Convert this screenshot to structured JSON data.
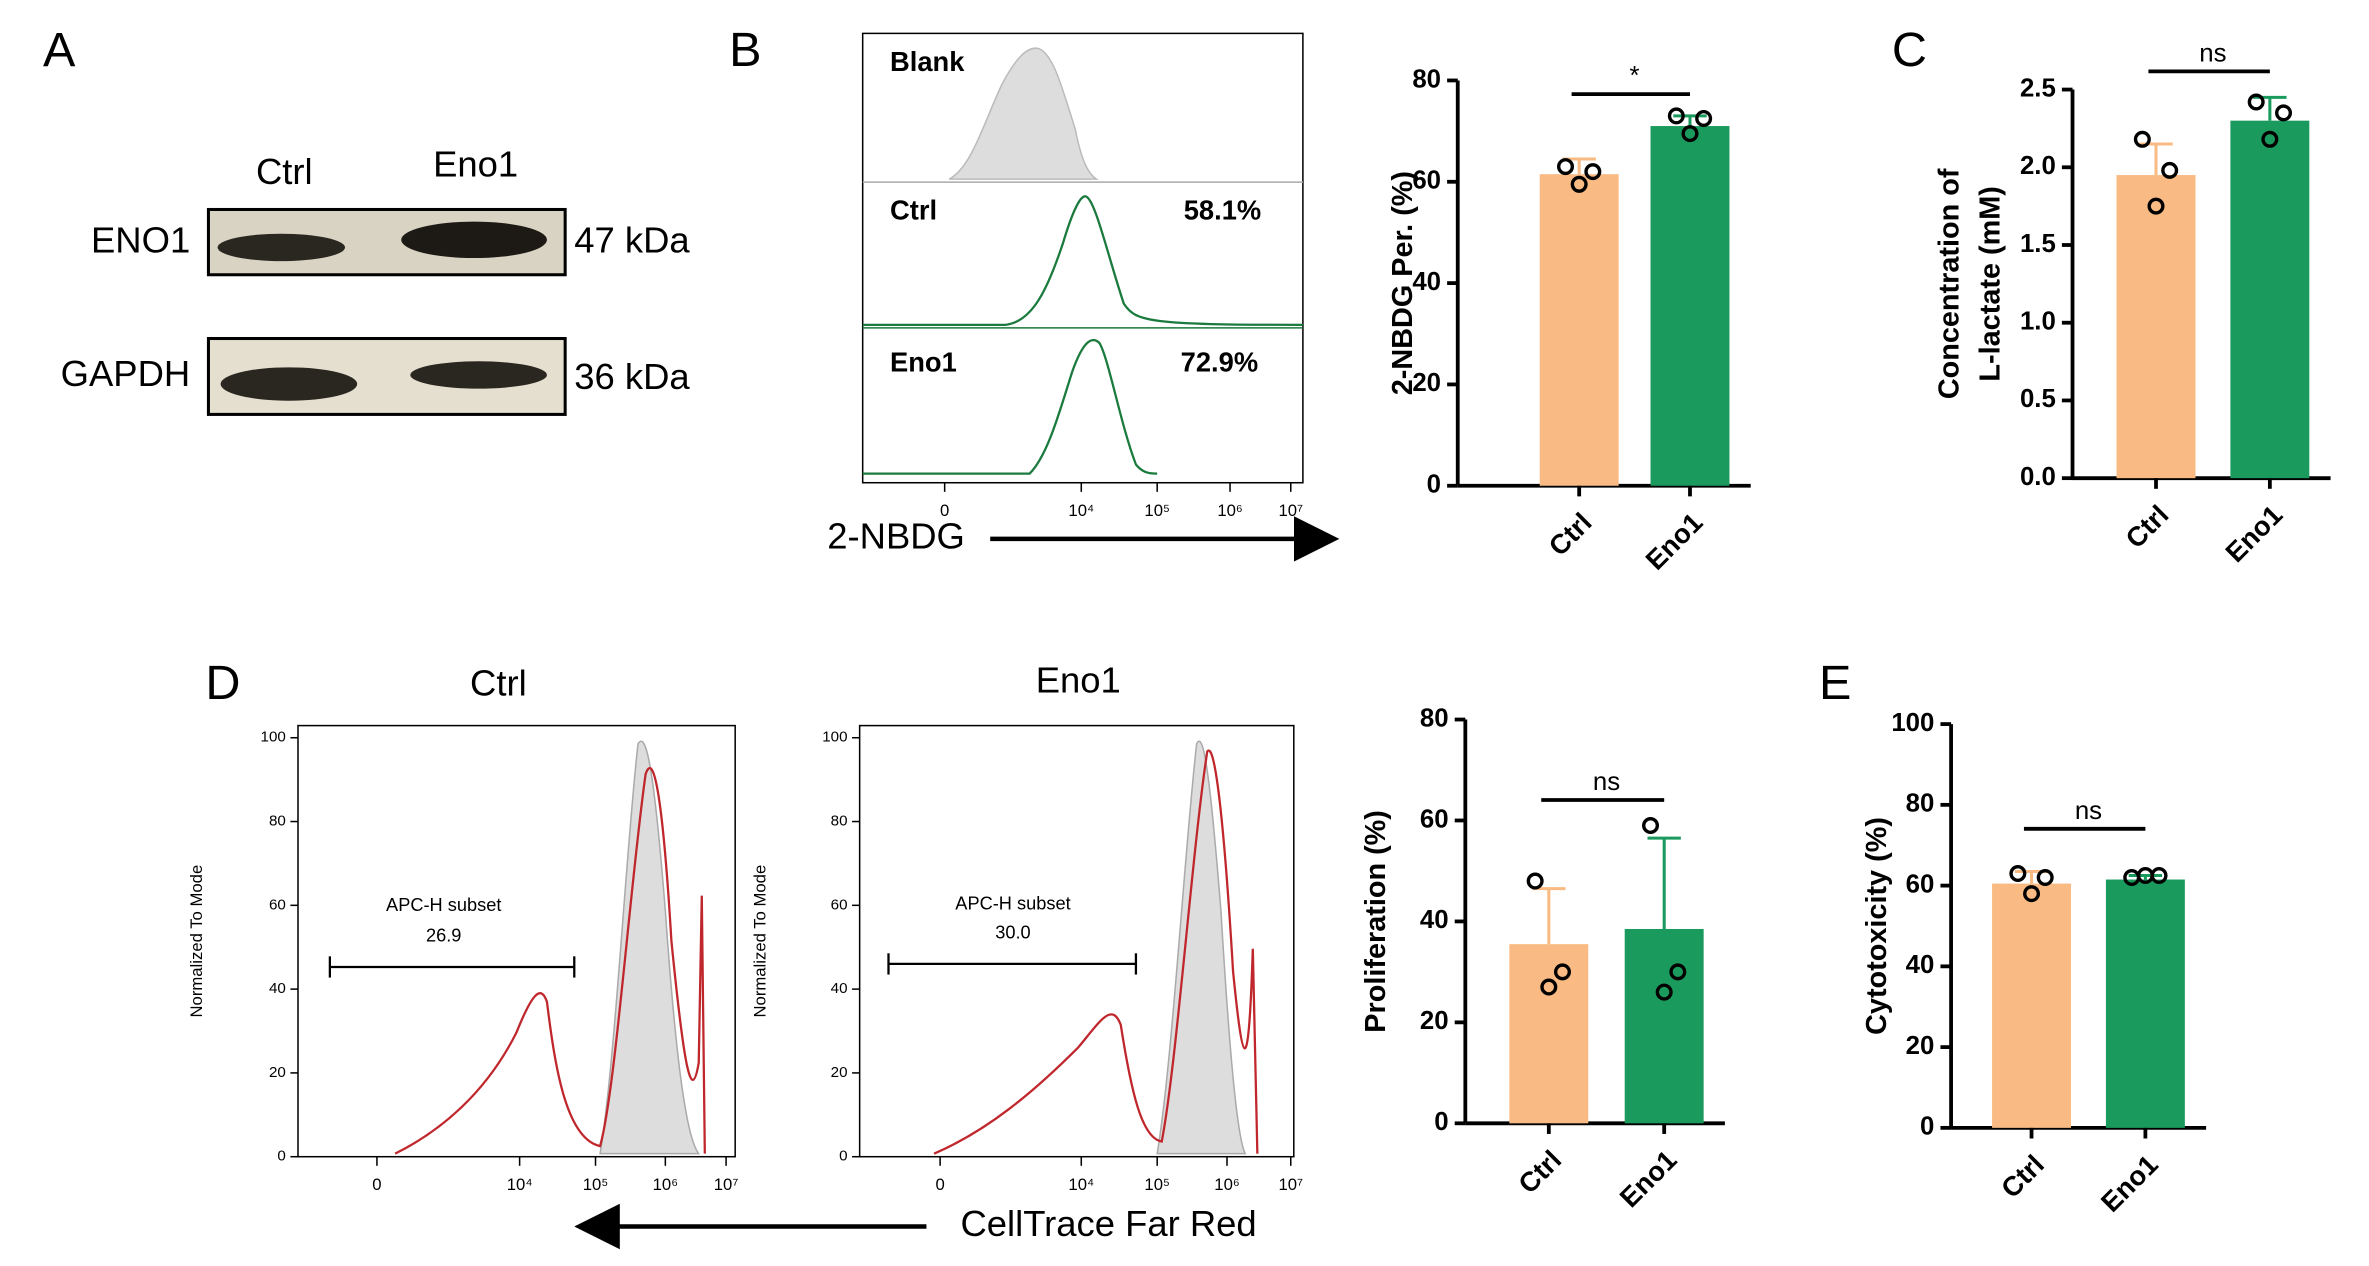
{
  "panel_labels": [
    "A",
    "B",
    "C",
    "D",
    "E"
  ],
  "blot": {
    "lanes": [
      "Ctrl",
      "Eno1"
    ],
    "bands": [
      {
        "name": "ENO1",
        "size": "47 kDa"
      },
      {
        "name": "GAPDH",
        "size": "36 kDa"
      }
    ]
  },
  "flow_b": {
    "samples": [
      {
        "name": "Blank"
      },
      {
        "name": "Ctrl",
        "percent": "58.1%"
      },
      {
        "name": "Eno1",
        "percent": "72.9%"
      }
    ],
    "xticks": [
      "0",
      "10⁴",
      "10⁵",
      "10⁶",
      "10⁷"
    ],
    "xlabel": "2-NBDG"
  },
  "flow_d": {
    "plots": [
      {
        "title": "Ctrl",
        "gate": "APC-H subset",
        "gate_value": "26.9"
      },
      {
        "title": "Eno1",
        "gate": "APC-H subset",
        "gate_value": "30.0"
      }
    ],
    "ylabel": "Normalized To Mode",
    "ylim": [
      0,
      100
    ],
    "yticks": [
      0,
      20,
      40,
      60,
      80,
      100
    ],
    "xticks": [
      "0",
      "10⁴",
      "10⁵",
      "10⁶",
      "10⁷"
    ],
    "xlabel": "CellTrace Far Red"
  },
  "chart_data": [
    {
      "type": "bar",
      "ylabel": "2-NBDG Per. (%)",
      "categories": [
        "Ctrl",
        "Eno1"
      ],
      "colors": [
        "#f9bb83",
        "#1b9a5d"
      ],
      "values": [
        61.5,
        71
      ],
      "error": [
        3,
        2
      ],
      "points": [
        [
          63,
          62,
          59.5
        ],
        [
          73,
          72.5,
          69.5
        ]
      ],
      "ylim": [
        0,
        80
      ],
      "yticks": [
        0,
        20,
        40,
        60,
        80
      ],
      "significance": "*"
    },
    {
      "type": "bar",
      "ylabel": [
        "Concentration of",
        "L-lactate (mM)"
      ],
      "categories": [
        "Ctrl",
        "Eno1"
      ],
      "colors": [
        "#f9bb83",
        "#1b9a5d"
      ],
      "values": [
        1.95,
        2.3
      ],
      "error": [
        0.2,
        0.15
      ],
      "points": [
        [
          2.18,
          1.98,
          1.75
        ],
        [
          2.42,
          2.35,
          2.18
        ]
      ],
      "ylim": [
        0,
        2.5
      ],
      "yticks": [
        {
          "value": 0,
          "label": "0.0"
        },
        0.5,
        {
          "value": 1,
          "label": "1.0"
        },
        1.5,
        {
          "value": 2,
          "label": "2.0"
        },
        2.5
      ],
      "significance": "ns"
    },
    {
      "type": "bar",
      "ylabel": "Proliferation (%)",
      "categories": [
        "Ctrl",
        "Eno1"
      ],
      "colors": [
        "#f9bb83",
        "#1b9a5d"
      ],
      "values": [
        35.5,
        38.5
      ],
      "error": [
        11,
        18
      ],
      "points": [
        [
          48,
          30,
          27
        ],
        [
          59,
          30,
          26
        ]
      ],
      "ylim": [
        0,
        80
      ],
      "yticks": [
        0,
        20,
        40,
        60,
        80
      ],
      "significance": "ns"
    },
    {
      "type": "bar",
      "ylabel": "Cytotoxicity (%)",
      "categories": [
        "Ctrl",
        "Eno1"
      ],
      "colors": [
        "#f9bb83",
        "#1b9a5d"
      ],
      "values": [
        60.5,
        61.5
      ],
      "error": [
        3,
        1
      ],
      "points": [
        [
          63,
          62,
          58
        ],
        [
          62,
          62.5,
          62.5
        ]
      ],
      "ylim": [
        0,
        100
      ],
      "yticks": [
        0,
        20,
        40,
        60,
        80,
        100
      ],
      "significance": "ns"
    }
  ]
}
